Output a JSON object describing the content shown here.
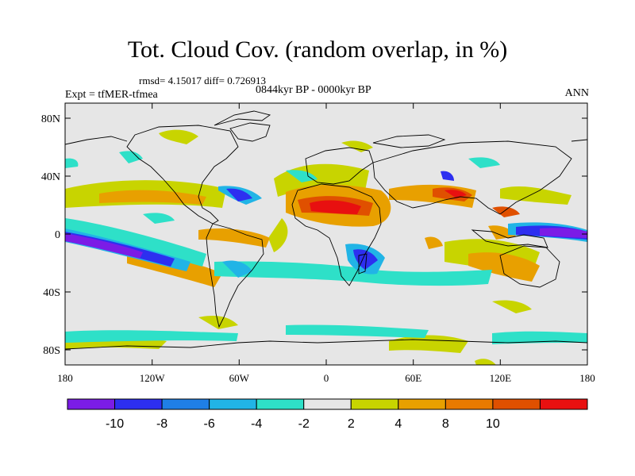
{
  "title": "Tot. Cloud Cov. (random overlap, in %)",
  "stats": "rmsd= 4.15017 diff= 0.726913",
  "period": "0844kyr BP - 0000kyr BP",
  "experiment": "Expt = tfMER-tfmea",
  "season": "ANN",
  "map": {
    "projection": "cylindrical equidistant",
    "lon_range": [
      -180,
      180
    ],
    "lat_range": [
      -90,
      90
    ],
    "background_color": "#e6e6e6",
    "coastline_color": "#000000",
    "lat_ticks": [
      "80N",
      "40N",
      "0",
      "40S",
      "80S"
    ],
    "lon_ticks": [
      "180",
      "120W",
      "60W",
      "0",
      "60E",
      "120E",
      "180"
    ]
  },
  "colorbar": {
    "levels": [
      "-10",
      "-8",
      "-6",
      "-4",
      "-2",
      "2",
      "4",
      "8",
      "10"
    ],
    "colors": [
      "#7b1ce6",
      "#2d2ff0",
      "#1f7fe6",
      "#21b4e6",
      "#2ee0c8",
      "#e6e6e6",
      "#c8d400",
      "#e8a000",
      "#e87a00",
      "#e05000",
      "#e81010"
    ]
  }
}
